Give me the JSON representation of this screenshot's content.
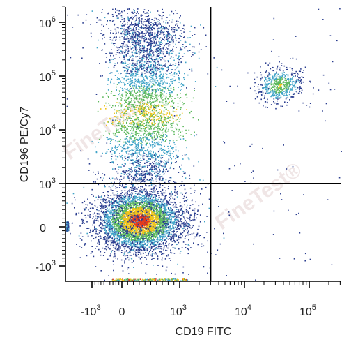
{
  "chart_data": {
    "type": "scatter",
    "subtype": "flow cytometry density dot plot",
    "xlabel": "CD19 FITC",
    "ylabel": "CD196 PE/Cy7",
    "x_scale": "biexponential",
    "y_scale": "biexponential",
    "x_ticks": [
      {
        "base": "-10",
        "exp": "3"
      },
      {
        "base": "0",
        "exp": ""
      },
      {
        "base": "10",
        "exp": "3"
      },
      {
        "base": "10",
        "exp": "4"
      },
      {
        "base": "10",
        "exp": "5"
      }
    ],
    "y_ticks": [
      {
        "base": "10",
        "exp": "6"
      },
      {
        "base": "10",
        "exp": "5"
      },
      {
        "base": "10",
        "exp": "4"
      },
      {
        "base": "10",
        "exp": "3"
      },
      {
        "base": "0",
        "exp": ""
      },
      {
        "base": "-10",
        "exp": "3"
      }
    ],
    "quadrant_gate": {
      "x": 3000,
      "y": 1000
    },
    "populations": [
      {
        "label": "CD19- CD196- (main)",
        "x_center": 300,
        "y_center": 150,
        "density": "high"
      },
      {
        "label": "CD19- CD196+ (tail)",
        "x_center": 600,
        "y_center": 20000,
        "density": "medium"
      },
      {
        "label": "CD19+ CD196+ (B cells)",
        "x_center": 35000,
        "y_center": 70000,
        "density": "low"
      }
    ],
    "colors": {
      "low": "#2a3d8f",
      "mid_low": "#3fa3c8",
      "mid": "#5cb85c",
      "mid_high": "#f0c419",
      "high": "#e23a1c",
      "gate_line": "#000000"
    },
    "grid": false,
    "legend": "none"
  },
  "watermarks": [
    "FineTest®",
    "FineTest®"
  ]
}
